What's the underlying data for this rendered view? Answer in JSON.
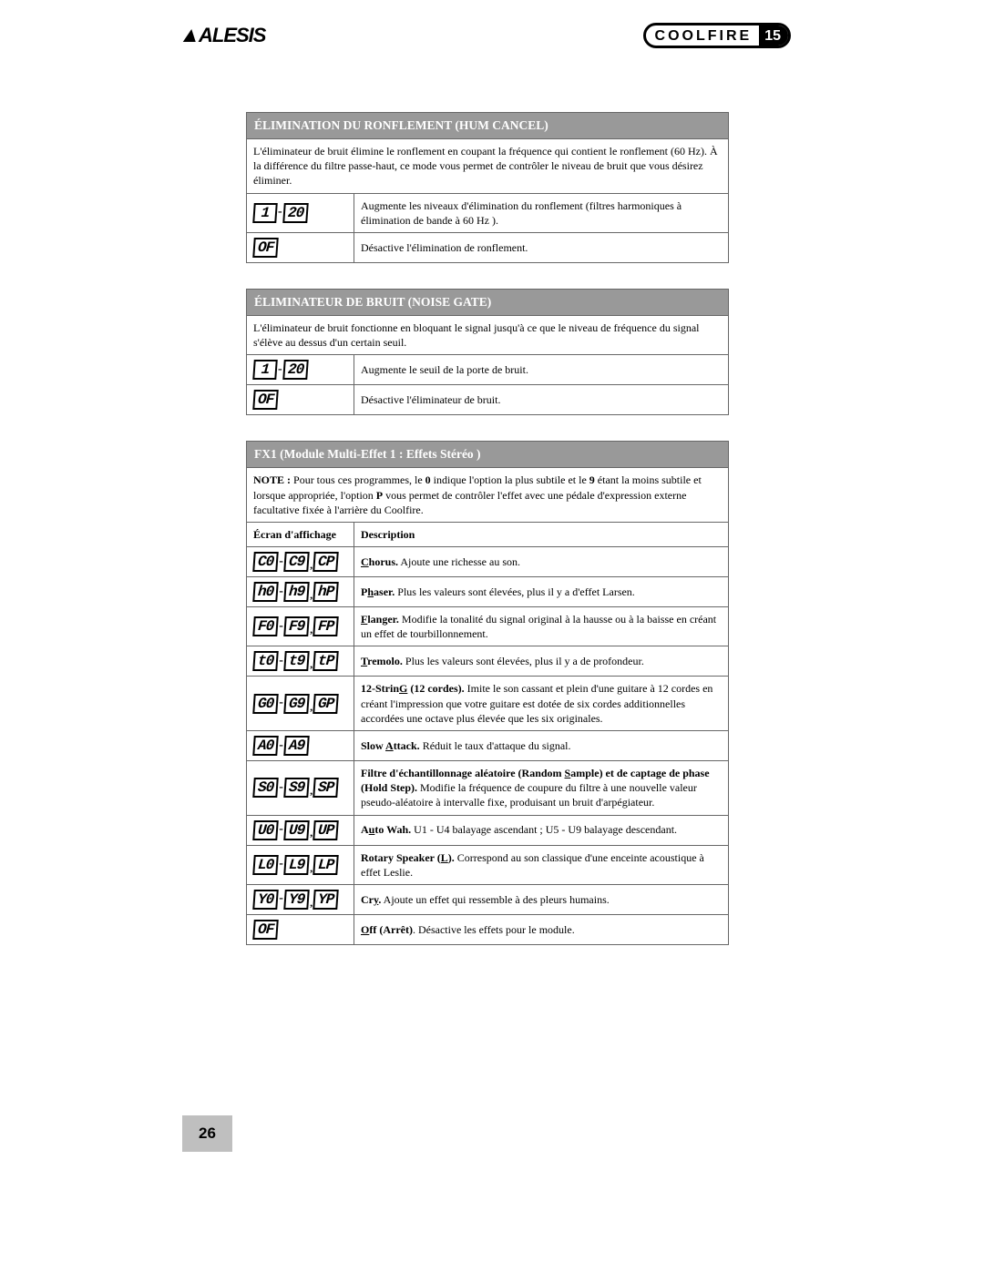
{
  "header": {
    "brand": "ALESIS",
    "product_name": "COOLFIRE",
    "product_num": "15"
  },
  "page_number": "26",
  "sections": [
    {
      "title": "ÉLIMINATION DU RONFLEMENT (HUM CANCEL)",
      "intro": "L'éliminateur de bruit élimine le ronflement en coupant la fréquence qui contient le ronflement (60 Hz). À la différence du filtre passe-haut, ce mode vous permet de contrôler le niveau de bruit que vous désirez éliminer.",
      "rows": [
        {
          "display": [
            "1",
            "20"
          ],
          "sep": "dash",
          "desc_plain": "Augmente les niveaux d'élimination du ronflement (filtres harmoniques à élimination de bande à 60 Hz )."
        },
        {
          "display": [
            "OF"
          ],
          "desc_plain": "Désactive l'élimination de ronflement."
        }
      ]
    },
    {
      "title": "ÉLIMINATEUR DE BRUIT (NOISE GATE)",
      "intro": "L'éliminateur de bruit fonctionne en bloquant le signal jusqu'à ce que le niveau de fréquence du signal s'élève au dessus d'un certain seuil.",
      "rows": [
        {
          "display": [
            "1",
            "20"
          ],
          "sep": "dash",
          "desc_plain": "Augmente le seuil de la porte de bruit."
        },
        {
          "display": [
            "OF"
          ],
          "desc_plain": "Désactive l'éliminateur de bruit."
        }
      ]
    },
    {
      "title": "FX1 (Module Multi-Effet 1 :  Effets Stéréo )",
      "intro_html": "<b>NOTE :</b> Pour tous ces programmes, le <b>0</b> indique l'option la plus subtile et le <b>9</b> étant la moins subtile et lorsque appropriée, l'option <b>P</b> vous permet de contrôler l'effet avec une pédale d'expression externe facultative fixée à l'arrière du Coolfire.",
      "col1": "Écran d'affichage",
      "col2": "Description",
      "rows": [
        {
          "display": [
            "C0",
            "C9",
            "CP"
          ],
          "sep": "dash-comma",
          "desc_html": "<b><span class='underline'>C</span>horus.</b>  Ajoute une richesse au son."
        },
        {
          "display": [
            "h0",
            "h9",
            "hP"
          ],
          "sep": "dash-comma",
          "desc_html": "<b>P<span class='underline'>h</span>aser.</b>  Plus les valeurs sont élevées, plus il y a d'effet Larsen."
        },
        {
          "display": [
            "F0",
            "F9",
            "FP"
          ],
          "sep": "dash-comma",
          "desc_html": "<b><span class='underline'>F</span>langer.</b>  Modifie la tonalité du signal original à la hausse ou à la baisse en créant un effet de tourbillonnement."
        },
        {
          "display": [
            "t0",
            "t9",
            "tP"
          ],
          "sep": "dash-comma",
          "desc_html": "<b><span class='underline'>T</span>remolo.</b>  Plus les valeurs sont élevées, plus il y a de profondeur."
        },
        {
          "display": [
            "G0",
            "G9",
            "GP"
          ],
          "sep": "dash-comma",
          "desc_html": "<b>12-Strin<span class='underline'>G</span>  (12 cordes).</b>  Imite le son cassant et plein d'une guitare à 12 cordes en créant l'impression que votre guitare est dotée de six cordes additionnelles accordées une octave plus élevée que les six originales."
        },
        {
          "display": [
            "A0",
            "A9"
          ],
          "sep": "dash",
          "desc_html": "<b>Slow <span class='underline'>A</span>ttack.</b>  Réduit le taux d'attaque du signal."
        },
        {
          "display": [
            "S0",
            "S9",
            "SP"
          ],
          "sep": "dash-comma",
          "desc_html": "<b>Filtre d'échantillonnage aléatoire (Random <span class='underline'>S</span>ample) et de captage de phase (Hold Step).</b>  Modifie la fréquence de coupure du filtre à une nouvelle valeur pseudo-aléatoire à intervalle fixe, produisant un bruit d'arpégiateur."
        },
        {
          "display": [
            "U0",
            "U9",
            "UP"
          ],
          "sep": "dash-comma",
          "desc_html": "<b>A<span class='underline'>u</span>to Wah.</b>  U1 - U4 balayage ascendant ; U5 - U9 balayage descendant."
        },
        {
          "display": [
            "L0",
            "L9",
            "LP"
          ],
          "sep": "dash-comma",
          "desc_html": "<b>Rotary Speaker (<span class='underline'>L</span>).</b>  Correspond au son classique d'une enceinte acoustique à effet Leslie."
        },
        {
          "display": [
            "Y0",
            "Y9",
            "YP"
          ],
          "sep": "dash-comma",
          "desc_html": "<b>Cr<span class='underline'>y</span>.</b>  Ajoute un effet qui ressemble à des pleurs humains."
        },
        {
          "display": [
            "OF"
          ],
          "desc_html": "<b><span class='underline'>O</span>ff (Arrêt)</b>.  Désactive les effets pour le module."
        }
      ]
    }
  ]
}
